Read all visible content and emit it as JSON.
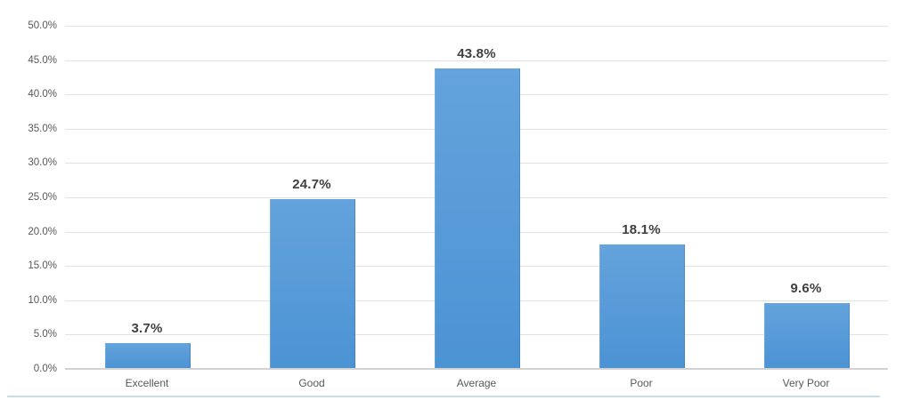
{
  "chart_data": {
    "type": "bar",
    "title": "",
    "xlabel": "",
    "ylabel": "",
    "categories": [
      "Excellent",
      "Good",
      "Average",
      "Poor",
      "Very Poor"
    ],
    "values": [
      3.7,
      24.7,
      43.8,
      18.1,
      9.6
    ],
    "data_labels": [
      "3.7%",
      "24.7%",
      "43.8%",
      "18.1%",
      "9.6%"
    ],
    "y_ticks": [
      "0.0%",
      "5.0%",
      "10.0%",
      "15.0%",
      "20.0%",
      "25.0%",
      "30.0%",
      "35.0%",
      "40.0%",
      "45.0%",
      "50.0%"
    ],
    "y_tick_values": [
      0,
      5,
      10,
      15,
      20,
      25,
      30,
      35,
      40,
      45,
      50
    ],
    "ylim": [
      0,
      50
    ],
    "grid": true,
    "legend": "none",
    "colors": {
      "bar_top": "#64A3DC",
      "bar_bottom": "#4C93D4",
      "gridline": "#E2E2E2",
      "axis_line": "#D2D2D2",
      "tick_label": "#595959",
      "data_label": "#404040",
      "accent_underline": "#C4DFE9"
    }
  }
}
